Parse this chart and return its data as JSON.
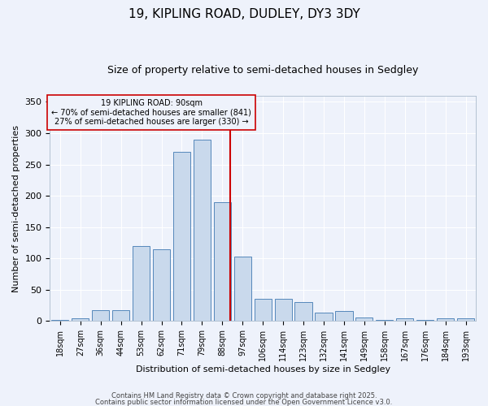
{
  "title_line1": "19, KIPLING ROAD, DUDLEY, DY3 3DY",
  "title_line2": "Size of property relative to semi-detached houses in Sedgley",
  "xlabel": "Distribution of semi-detached houses by size in Sedgley",
  "ylabel": "Number of semi-detached properties",
  "bar_labels": [
    "18sqm",
    "27sqm",
    "36sqm",
    "44sqm",
    "53sqm",
    "62sqm",
    "71sqm",
    "79sqm",
    "88sqm",
    "97sqm",
    "106sqm",
    "114sqm",
    "123sqm",
    "132sqm",
    "141sqm",
    "149sqm",
    "158sqm",
    "167sqm",
    "176sqm",
    "184sqm",
    "193sqm"
  ],
  "bar_values": [
    2,
    5,
    17,
    17,
    120,
    115,
    270,
    290,
    190,
    103,
    35,
    35,
    30,
    13,
    16,
    6,
    2,
    4,
    2,
    5,
    4
  ],
  "bar_color": "#c9d9ec",
  "bar_edge_color": "#5588bb",
  "red_line_x": 8.4,
  "red_line_color": "#cc0000",
  "annotation_text_line1": "19 KIPLING ROAD: 90sqm",
  "annotation_text_line2": "← 70% of semi-detached houses are smaller (841)",
  "annotation_text_line3": "27% of semi-detached houses are larger (330) →",
  "annotation_box_edge_color": "#cc0000",
  "ylim": [
    0,
    360
  ],
  "yticks": [
    0,
    50,
    100,
    150,
    200,
    250,
    300,
    350
  ],
  "bg_color": "#eef2fb",
  "grid_color": "#ffffff",
  "footer_line1": "Contains HM Land Registry data © Crown copyright and database right 2025.",
  "footer_line2": "Contains public sector information licensed under the Open Government Licence v3.0."
}
